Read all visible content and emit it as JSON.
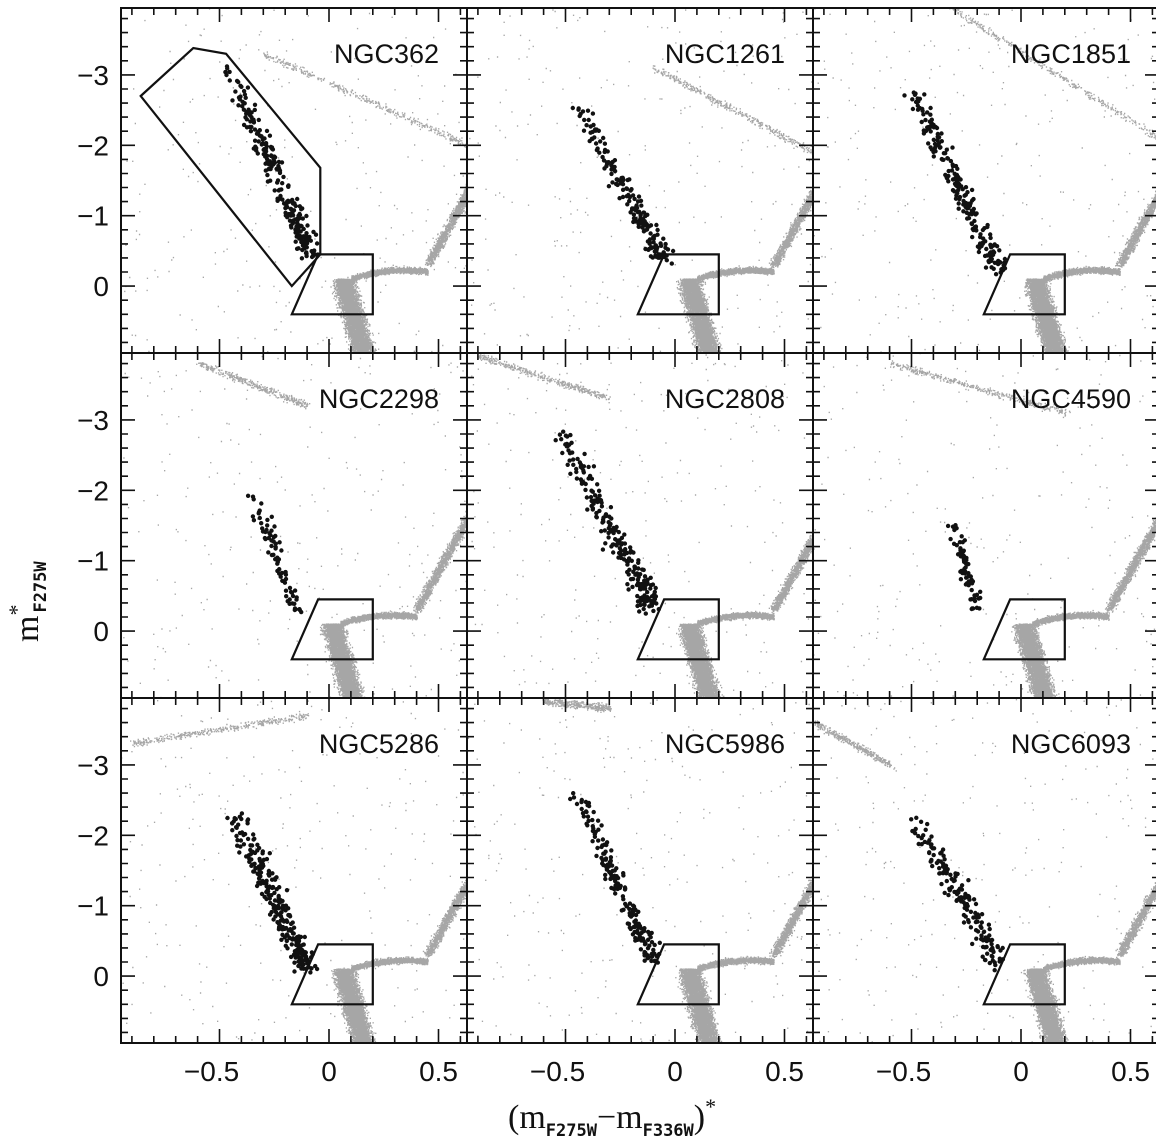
{
  "colors": {
    "field_stars": "#a6a6a6",
    "selected_stars": "#111111",
    "frame": "#111111"
  },
  "axes": {
    "xlabel_prefix": "(m",
    "xlabel_sub1": "F275W",
    "xlabel_minus": "−m",
    "xlabel_sub2": "F336W",
    "xlabel_suffix": ")",
    "xlabel_star": "*",
    "ylabel_main": "m",
    "ylabel_star": "*",
    "ylabel_sub": "F275W",
    "x_ticklabels": [
      "−0.5",
      "0",
      "0.5"
    ],
    "y_ticklabels": [
      "−3",
      "−2",
      "−1",
      "0"
    ]
  },
  "chart_data": {
    "type": "scatter",
    "layout": "3x3 grid of panels, shared axes",
    "xlim": [
      -0.95,
      0.63
    ],
    "ylim": [
      0.95,
      -3.95
    ],
    "y_inverted": true,
    "x_major_ticks": [
      -0.5,
      0,
      0.5
    ],
    "y_major_ticks": [
      -3,
      -2,
      -1,
      0
    ],
    "ms_box": [
      [
        -0.17,
        0.4
      ],
      [
        -0.05,
        -0.45
      ],
      [
        0.2,
        -0.45
      ],
      [
        0.2,
        0.4
      ]
    ],
    "bss_region_NGC362": [
      [
        -0.86,
        -2.7
      ],
      [
        -0.62,
        -3.38
      ],
      [
        -0.47,
        -3.3
      ],
      [
        -0.04,
        -1.68
      ],
      [
        -0.04,
        -0.45
      ],
      [
        -0.17,
        0.0
      ]
    ],
    "panels": [
      {
        "name": "NGC362",
        "bss": {
          "n": 240,
          "x0": -0.47,
          "y0": -3.2,
          "x1": -0.08,
          "y1": -0.4,
          "spread": 0.08
        },
        "msto_x": 0.05,
        "rgb_shift": 0.0,
        "hb": {
          "x0": -0.3,
          "y0": -3.3,
          "x1": 0.63,
          "y1": -2.0
        }
      },
      {
        "name": "NGC1261",
        "bss": {
          "n": 190,
          "x0": -0.45,
          "y0": -2.6,
          "x1": -0.05,
          "y1": -0.35,
          "spread": 0.07
        },
        "msto_x": 0.05,
        "rgb_shift": 0.0,
        "hb": {
          "x0": -0.1,
          "y0": -3.1,
          "x1": 0.63,
          "y1": -1.9
        }
      },
      {
        "name": "NGC1851",
        "bss": {
          "n": 210,
          "x0": -0.5,
          "y0": -2.8,
          "x1": -0.1,
          "y1": -0.2,
          "spread": 0.07
        },
        "msto_x": 0.05,
        "rgb_shift": 0.0,
        "hb": {
          "x0": -0.35,
          "y0": -4.0,
          "x1": 0.63,
          "y1": -2.1
        }
      },
      {
        "name": "NGC2298",
        "bss": {
          "n": 75,
          "x0": -0.35,
          "y0": -2.0,
          "x1": -0.15,
          "y1": -0.3,
          "spread": 0.06
        },
        "msto_x": 0.0,
        "rgb_shift": 0.0,
        "hb": {
          "x0": -0.6,
          "y0": -3.8,
          "x1": -0.1,
          "y1": -3.2
        }
      },
      {
        "name": "NGC2808",
        "bss": {
          "n": 230,
          "x0": -0.55,
          "y0": -3.0,
          "x1": -0.1,
          "y1": -0.3,
          "spread": 0.08
        },
        "msto_x": 0.05,
        "rgb_shift": 0.0,
        "hb": {
          "x0": -0.9,
          "y0": -3.9,
          "x1": -0.3,
          "y1": -3.3
        }
      },
      {
        "name": "NGC4590",
        "bss": {
          "n": 70,
          "x0": -0.32,
          "y0": -1.6,
          "x1": -0.2,
          "y1": -0.3,
          "spread": 0.05
        },
        "msto_x": 0.0,
        "rgb_shift": 0.0,
        "hb": {
          "x0": -0.6,
          "y0": -3.8,
          "x1": 0.2,
          "y1": -3.1
        }
      },
      {
        "name": "NGC5286",
        "bss": {
          "n": 260,
          "x0": -0.45,
          "y0": -2.4,
          "x1": -0.1,
          "y1": -0.1,
          "spread": 0.09
        },
        "msto_x": 0.05,
        "rgb_shift": 0.0,
        "hb": {
          "x0": -0.9,
          "y0": -3.3,
          "x1": -0.1,
          "y1": -3.7
        }
      },
      {
        "name": "NGC5986",
        "bss": {
          "n": 180,
          "x0": -0.45,
          "y0": -2.6,
          "x1": -0.1,
          "y1": -0.2,
          "spread": 0.07
        },
        "msto_x": 0.05,
        "rgb_shift": 0.0,
        "hb": {
          "x0": -0.6,
          "y0": -3.9,
          "x1": -0.3,
          "y1": -3.8
        }
      },
      {
        "name": "NGC6093",
        "bss": {
          "n": 170,
          "x0": -0.5,
          "y0": -2.3,
          "x1": -0.1,
          "y1": -0.2,
          "spread": 0.08
        },
        "msto_x": 0.05,
        "rgb_shift": 0.0,
        "hb": {
          "x0": -0.95,
          "y0": -3.6,
          "x1": -0.6,
          "y1": -3.0
        }
      }
    ]
  }
}
